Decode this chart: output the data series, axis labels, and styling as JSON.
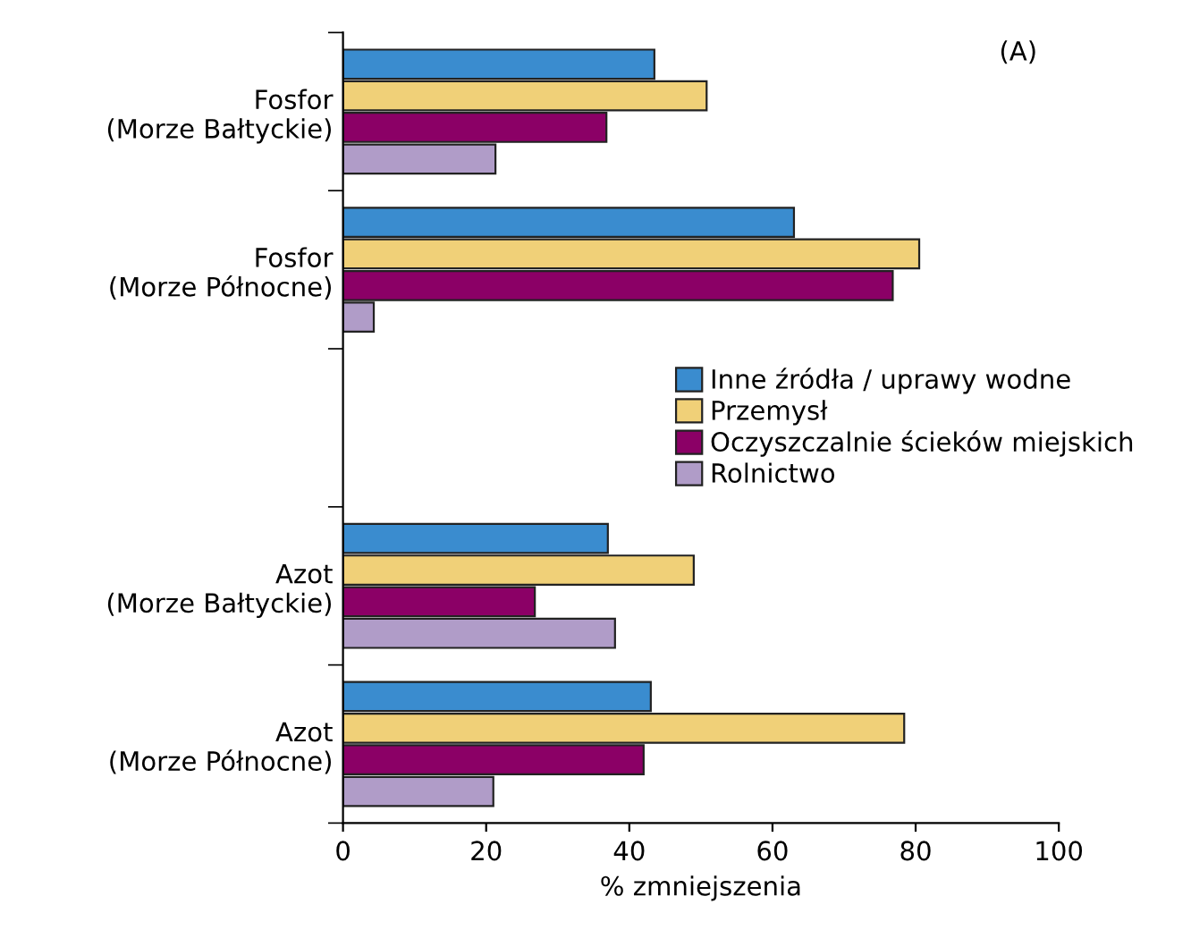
{
  "chart_data": {
    "type": "bar",
    "orientation": "horizontal",
    "xlabel": "% zmniejszenia",
    "annotations": [
      "(A)"
    ],
    "categories": [
      "Fosfor\n(Morze Bałtyckie)",
      "Fosfor\n(Morze Północne)",
      null,
      "Azot\n(Morze Bałtyckie)",
      "Azot\n(Morze Północne)"
    ],
    "series": [
      {
        "name": "Inne źródła / uprawy wodne",
        "color": "#3a8ccf",
        "values": [
          43.5,
          63,
          null,
          37,
          43
        ]
      },
      {
        "name": "Przemysł",
        "color": "#f0d078",
        "values": [
          50.8,
          80.5,
          null,
          49,
          78.4
        ]
      },
      {
        "name": "Oczyszczalnie ścieków miejskich",
        "color": "#8b0066",
        "values": [
          36.8,
          76.8,
          null,
          26.8,
          42
        ]
      },
      {
        "name": "Rolnictwo",
        "color": "#b09cc8",
        "values": [
          21.3,
          4.3,
          null,
          38,
          21
        ]
      }
    ],
    "xlim": [
      0,
      100
    ],
    "xticks": [
      0,
      20,
      40,
      60,
      80,
      100
    ],
    "grid": false,
    "legend": "center right"
  }
}
